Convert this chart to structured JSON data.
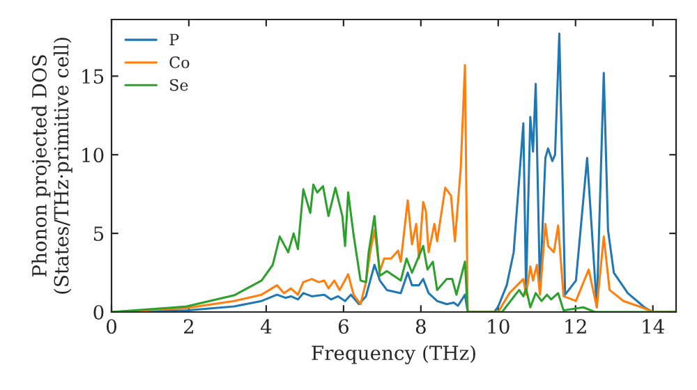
{
  "chart_data": {
    "type": "line",
    "xlabel": "Frequency (THz)",
    "ylabel": "Phonon projected DOS\n(States/THz·primitive cell)",
    "xlim": [
      0,
      14.6
    ],
    "ylim": [
      0,
      18.6
    ],
    "xticks": [
      0,
      2,
      4,
      6,
      8,
      10,
      12,
      14
    ],
    "yticks": [
      0,
      5,
      10,
      15
    ],
    "grid": false,
    "legend": "top left",
    "marker": "none",
    "line_style": "solid",
    "series": [
      {
        "name": "P",
        "color": "#1f77b4",
        "x": [
          0,
          1.94,
          3.17,
          3.88,
          4.28,
          4.5,
          4.64,
          4.82,
          4.96,
          5.18,
          5.5,
          5.68,
          5.86,
          6.04,
          6.19,
          6.4,
          6.58,
          6.69,
          6.8,
          6.94,
          7.12,
          7.48,
          7.66,
          7.77,
          7.95,
          8.06,
          8.2,
          8.42,
          8.67,
          8.85,
          8.96,
          9.14,
          9.21,
          9.9,
          10.0,
          10.22,
          10.4,
          10.65,
          10.72,
          10.83,
          10.9,
          10.97,
          11.08,
          11.22,
          11.29,
          11.4,
          11.47,
          11.58,
          11.73,
          12.01,
          12.3,
          12.55,
          12.73,
          12.84,
          12.99,
          13.35,
          13.78,
          14.0,
          14.6
        ],
        "values": [
          0,
          0.1,
          0.35,
          0.7,
          1.1,
          0.9,
          1.0,
          0.8,
          1.2,
          1.0,
          1.1,
          0.8,
          1.0,
          0.7,
          1.1,
          0.5,
          1.0,
          2.0,
          3.0,
          2.0,
          1.4,
          1.2,
          2.5,
          1.7,
          1.7,
          2.1,
          1.2,
          0.7,
          0.5,
          0.6,
          0.4,
          1.1,
          0,
          0,
          0.35,
          1.7,
          3.8,
          12.0,
          1.4,
          12.4,
          10.2,
          14.5,
          1.4,
          9.8,
          10.4,
          9.6,
          10.0,
          17.7,
          1.1,
          2.0,
          9.8,
          0.3,
          15.2,
          5.2,
          2.5,
          1.2,
          0.3,
          0,
          0
        ]
      },
      {
        "name": "Co",
        "color": "#ff7f0e",
        "x": [
          0,
          1.94,
          3.17,
          3.88,
          4.28,
          4.46,
          4.64,
          4.82,
          4.96,
          5.18,
          5.36,
          5.5,
          5.61,
          5.76,
          5.9,
          6.12,
          6.26,
          6.44,
          6.58,
          6.69,
          6.8,
          6.94,
          7.05,
          7.23,
          7.41,
          7.48,
          7.66,
          7.77,
          7.88,
          7.95,
          8.06,
          8.13,
          8.2,
          8.35,
          8.42,
          8.63,
          8.78,
          8.88,
          9.03,
          9.14,
          9.21,
          10.0,
          10.29,
          10.65,
          10.72,
          10.83,
          10.9,
          11.0,
          11.08,
          11.22,
          11.29,
          11.44,
          11.55,
          11.69,
          12.01,
          12.34,
          12.55,
          12.73,
          12.88,
          13.24,
          13.71,
          14.0,
          14.6
        ],
        "values": [
          0,
          0.25,
          0.7,
          1.1,
          1.7,
          1.2,
          1.5,
          1.1,
          1.9,
          2.1,
          1.9,
          2.0,
          1.5,
          2.0,
          1.4,
          2.4,
          1.1,
          0.5,
          1.9,
          3.8,
          5.2,
          2.6,
          3.4,
          3.4,
          3.9,
          3.2,
          7.1,
          4.3,
          5.6,
          3.4,
          7.0,
          6.4,
          3.8,
          5.6,
          4.5,
          7.9,
          7.4,
          4.5,
          9.1,
          15.7,
          0,
          0,
          1.2,
          2.1,
          1.1,
          2.9,
          2.0,
          3.0,
          1.1,
          5.6,
          4.2,
          3.8,
          5.5,
          1.0,
          0.7,
          2.7,
          0.3,
          4.8,
          1.4,
          0.7,
          0.3,
          0,
          0
        ]
      },
      {
        "name": "Se",
        "color": "#2ca02c",
        "x": [
          0,
          1.94,
          3.17,
          3.88,
          4.17,
          4.35,
          4.57,
          4.71,
          4.82,
          4.96,
          5.14,
          5.22,
          5.32,
          5.47,
          5.61,
          5.79,
          5.97,
          6.04,
          6.12,
          6.26,
          6.44,
          6.58,
          6.65,
          6.8,
          6.94,
          7.12,
          7.48,
          7.63,
          7.77,
          8.06,
          8.17,
          8.31,
          8.42,
          8.67,
          8.81,
          8.92,
          9.14,
          9.21,
          10.1,
          10.54,
          10.65,
          10.72,
          10.83,
          10.97,
          11.12,
          11.26,
          11.37,
          11.55,
          11.69,
          12.2,
          12.5,
          14.0,
          14.6
        ],
        "values": [
          0,
          0.35,
          1.06,
          2.0,
          3.0,
          4.8,
          3.8,
          5.0,
          4.0,
          7.8,
          6.3,
          8.1,
          7.6,
          8.0,
          6.1,
          7.9,
          6.1,
          4.2,
          7.6,
          4.9,
          2.0,
          1.9,
          3.8,
          6.1,
          2.3,
          2.6,
          2.0,
          3.4,
          2.5,
          4.2,
          2.7,
          3.2,
          1.4,
          2.1,
          2.1,
          1.1,
          3.2,
          0,
          0,
          1.4,
          1.0,
          1.5,
          0.3,
          1.2,
          0.7,
          1.1,
          0.8,
          1.2,
          0.1,
          0.3,
          0,
          0,
          0
        ]
      }
    ]
  }
}
